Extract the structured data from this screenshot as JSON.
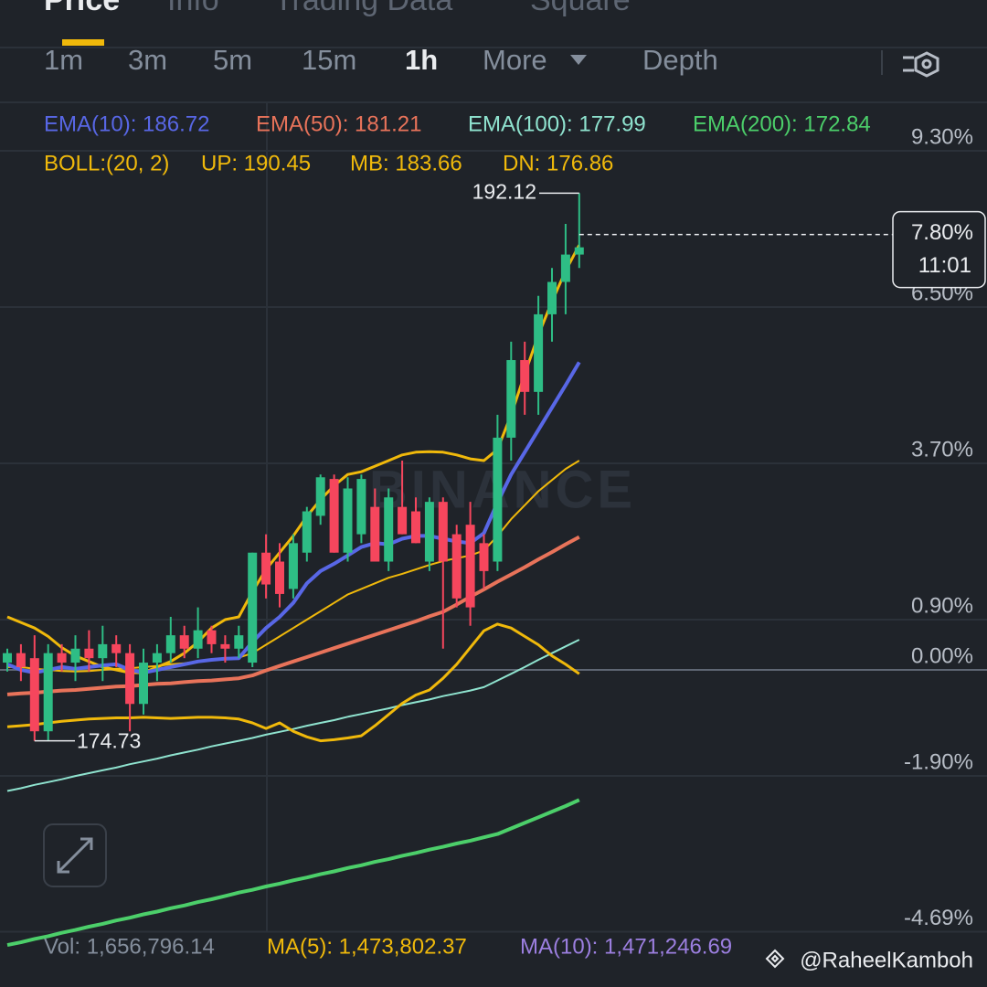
{
  "header": {
    "tabs": [
      "Price",
      "Info",
      "Trading Data",
      "Square"
    ],
    "active_tab": 0
  },
  "intervals": {
    "items": [
      "1m",
      "3m",
      "5m",
      "15m",
      "1h",
      "More",
      "Depth"
    ],
    "active": 4
  },
  "indicators": {
    "ema": [
      {
        "text": "EMA(10): 186.72",
        "color": "#5867e6"
      },
      {
        "text": "EMA(50): 181.21",
        "color": "#e8735a"
      },
      {
        "text": "EMA(100): 177.99",
        "color": "#8fe3cf"
      },
      {
        "text": "EMA(200): 172.84",
        "color": "#4ccf6a"
      }
    ],
    "boll": [
      "BOLL:(20, 2)",
      "UP: 190.45",
      "MB: 183.66",
      "DN: 176.86"
    ],
    "boll_color": "#f0b90b"
  },
  "chart_data": {
    "type": "candlestick",
    "up_color": "#2ebd85",
    "down_color": "#f6465d",
    "grid": true,
    "ylim": [
      -4.69,
      9.3
    ],
    "yticks": [
      {
        "value": 9.3,
        "label": "9.30%"
      },
      {
        "value": 6.5,
        "label": "6.50%"
      },
      {
        "value": 3.7,
        "label": "3.70%"
      },
      {
        "value": 0.9,
        "label": "0.90%"
      },
      {
        "value": 0,
        "label": "0.00%"
      },
      {
        "value": -1.9,
        "label": "-1.90%"
      },
      {
        "value": -4.69,
        "label": "-4.69%"
      }
    ],
    "open": [
      0.13,
      0.3,
      0.21,
      -1.1,
      0.3,
      0.13,
      0.38,
      0.21,
      0.46,
      0.3,
      -0.61,
      0.13,
      0.3,
      0.62,
      0.38,
      0.71,
      0.46,
      0.38,
      0.13,
      2.1,
      1.94,
      1.45,
      2.1,
      2.76,
      3.42,
      2.1,
      2.43,
      2.92,
      1.94,
      2.92,
      2.84,
      1.94,
      3.01,
      2.43,
      2.6,
      2.27,
      1.94,
      4.16,
      5.55,
      4.98,
      6.37,
      6.95,
      7.44
    ],
    "high": [
      0.38,
      0.46,
      0.62,
      0.46,
      0.46,
      0.62,
      0.71,
      0.79,
      0.62,
      0.46,
      0.38,
      0.46,
      0.95,
      0.79,
      1.12,
      0.79,
      0.62,
      0.79,
      2.1,
      2.43,
      2.27,
      2.43,
      2.92,
      3.5,
      3.5,
      3.45,
      3.5,
      3.25,
      3.25,
      3.75,
      3.09,
      3.09,
      3.09,
      2.6,
      3.01,
      2.43,
      4.57,
      5.88,
      5.88,
      6.7,
      7.2,
      7.99,
      8.54
    ],
    "low": [
      -0.03,
      -0.2,
      -1.27,
      -1.27,
      -0.03,
      -0.2,
      -0.03,
      -0.2,
      0.05,
      -1.1,
      -0.8,
      -0.2,
      0.13,
      0.21,
      0.21,
      0.3,
      0.13,
      0.21,
      0.05,
      1.28,
      1.12,
      1.28,
      1.94,
      2.6,
      2.1,
      1.94,
      2.27,
      1.94,
      1.77,
      2.43,
      2.27,
      1.77,
      0.38,
      1.12,
      0.79,
      1.45,
      1.77,
      3.75,
      4.57,
      4.57,
      5.88,
      6.37,
      7.2
    ],
    "close": [
      0.3,
      0.05,
      -1.1,
      0.3,
      0.13,
      0.38,
      0.21,
      0.46,
      0.3,
      -0.61,
      0.13,
      0.3,
      0.62,
      0.38,
      0.71,
      0.46,
      0.38,
      0.62,
      2.1,
      1.53,
      1.36,
      2.27,
      2.84,
      3.45,
      2.1,
      3.25,
      3.42,
      1.94,
      3.09,
      2.43,
      2.27,
      3.01,
      1.94,
      1.28,
      1.12,
      1.77,
      4.16,
      5.55,
      4.98,
      6.37,
      6.95,
      7.44,
      7.57
    ],
    "lines": [
      {
        "name": "EMA(200)",
        "color": "#4ccf6a",
        "width": 4,
        "values": [
          -4.93,
          -4.88,
          -4.82,
          -4.77,
          -4.71,
          -4.66,
          -4.6,
          -4.55,
          -4.49,
          -4.44,
          -4.38,
          -4.33,
          -4.27,
          -4.22,
          -4.16,
          -4.11,
          -4.05,
          -3.99,
          -3.94,
          -3.88,
          -3.83,
          -3.77,
          -3.72,
          -3.66,
          -3.61,
          -3.55,
          -3.5,
          -3.44,
          -3.39,
          -3.33,
          -3.28,
          -3.22,
          -3.17,
          -3.11,
          -3.06,
          -3.0,
          -2.94,
          -2.84,
          -2.74,
          -2.64,
          -2.54,
          -2.44,
          -2.33
        ]
      },
      {
        "name": "EMA(100)",
        "color": "#8fe3cf",
        "width": 2,
        "values": [
          -2.17,
          -2.12,
          -2.06,
          -2.01,
          -1.96,
          -1.9,
          -1.85,
          -1.8,
          -1.75,
          -1.69,
          -1.64,
          -1.59,
          -1.53,
          -1.48,
          -1.43,
          -1.37,
          -1.32,
          -1.27,
          -1.22,
          -1.16,
          -1.11,
          -1.06,
          -1.0,
          -0.95,
          -0.9,
          -0.84,
          -0.79,
          -0.74,
          -0.69,
          -0.63,
          -0.58,
          -0.53,
          -0.47,
          -0.42,
          -0.37,
          -0.31,
          -0.19,
          -0.07,
          0.05,
          0.18,
          0.3,
          0.42,
          0.54
        ]
      },
      {
        "name": "EMA(50)",
        "color": "#e8735a",
        "width": 4,
        "values": [
          -0.44,
          -0.42,
          -0.41,
          -0.39,
          -0.37,
          -0.36,
          -0.34,
          -0.32,
          -0.3,
          -0.29,
          -0.27,
          -0.25,
          -0.24,
          -0.22,
          -0.2,
          -0.19,
          -0.17,
          -0.15,
          -0.1,
          -0.01,
          0.07,
          0.15,
          0.23,
          0.31,
          0.39,
          0.47,
          0.55,
          0.63,
          0.71,
          0.79,
          0.87,
          0.96,
          1.04,
          1.17,
          1.31,
          1.44,
          1.58,
          1.71,
          1.84,
          1.98,
          2.11,
          2.25,
          2.38
        ]
      },
      {
        "name": "BOLL MB",
        "color": "#f0b90b",
        "width": 2,
        "values": [
          0.05,
          0.05,
          0.02,
          0.0,
          -0.02,
          -0.03,
          -0.02,
          0.0,
          0.02,
          0.03,
          0.05,
          0.07,
          0.1,
          0.12,
          0.15,
          0.18,
          0.2,
          0.22,
          0.3,
          0.45,
          0.6,
          0.75,
          0.9,
          1.05,
          1.2,
          1.35,
          1.45,
          1.55,
          1.65,
          1.72,
          1.8,
          1.88,
          1.95,
          2.0,
          2.05,
          2.14,
          2.4,
          2.7,
          2.95,
          3.2,
          3.4,
          3.6,
          3.75
        ]
      },
      {
        "name": "BOLL UP",
        "color": "#f0b90b",
        "width": 3,
        "values": [
          0.95,
          0.85,
          0.75,
          0.6,
          0.4,
          0.25,
          0.15,
          0.05,
          0.0,
          -0.05,
          -0.05,
          0.05,
          0.15,
          0.3,
          0.5,
          0.75,
          0.9,
          0.95,
          1.4,
          1.8,
          2.1,
          2.4,
          2.75,
          3.05,
          3.3,
          3.5,
          3.55,
          3.65,
          3.75,
          3.85,
          3.9,
          3.91,
          3.9,
          3.85,
          3.78,
          3.75,
          3.95,
          4.57,
          5.3,
          6.0,
          6.6,
          7.15,
          7.61
        ]
      },
      {
        "name": "BOLL DN",
        "color": "#f0b90b",
        "width": 3,
        "values": [
          -1.02,
          -1.0,
          -0.98,
          -0.95,
          -0.92,
          -0.9,
          -0.88,
          -0.87,
          -0.86,
          -0.86,
          -0.85,
          -0.86,
          -0.87,
          -0.86,
          -0.85,
          -0.85,
          -0.86,
          -0.88,
          -0.95,
          -1.05,
          -0.95,
          -1.1,
          -1.2,
          -1.27,
          -1.25,
          -1.22,
          -1.18,
          -1.0,
          -0.8,
          -0.6,
          -0.45,
          -0.36,
          -0.15,
          0.1,
          0.4,
          0.7,
          0.82,
          0.75,
          0.6,
          0.45,
          0.25,
          0.1,
          -0.07
        ]
      },
      {
        "name": "EMA(10)",
        "color": "#5867e6",
        "width": 4,
        "values": [
          0.1,
          0.0,
          -0.05,
          0.0,
          0.05,
          0.02,
          0.05,
          0.08,
          0.1,
          0.0,
          -0.05,
          0.0,
          0.05,
          0.1,
          0.15,
          0.18,
          0.2,
          0.21,
          0.5,
          0.75,
          0.95,
          1.2,
          1.55,
          1.77,
          1.9,
          2.05,
          2.2,
          2.27,
          2.25,
          2.35,
          2.4,
          2.4,
          2.35,
          2.3,
          2.27,
          2.45,
          3.0,
          3.5,
          3.9,
          4.3,
          4.7,
          5.1,
          5.51
        ]
      }
    ],
    "high_label": "192.12",
    "low_label": "174.73",
    "last_price": {
      "value": 7.8,
      "label": "7.80%"
    },
    "countdown": "11:01",
    "watermark": "BINANCE"
  },
  "volume": {
    "items": [
      {
        "text": "Vol: 1,656,796.14",
        "color": "#848e9c"
      },
      {
        "text": "MA(5): 1,473,802.37",
        "color": "#f0b90b"
      },
      {
        "text": "MA(10): 1,471,246.69",
        "color": "#9c7fe0"
      }
    ]
  },
  "footer": {
    "handle": "@RaheelKamboh"
  }
}
